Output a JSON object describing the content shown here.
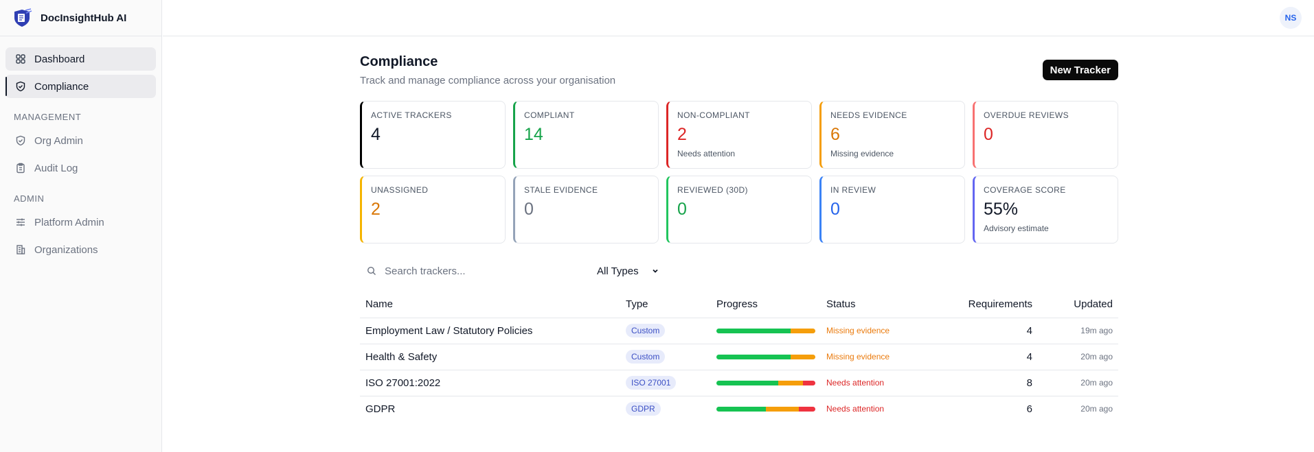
{
  "app": {
    "name": "DocInsightHub AI"
  },
  "user": {
    "initials": "NS"
  },
  "sidebar": {
    "items": [
      {
        "label": "Dashboard",
        "icon": "grid-icon"
      },
      {
        "label": "Compliance",
        "icon": "shield-check-icon"
      }
    ],
    "sections": [
      {
        "title": "MANAGEMENT",
        "items": [
          {
            "label": "Org Admin",
            "icon": "shield-icon"
          },
          {
            "label": "Audit Log",
            "icon": "clipboard-icon"
          }
        ]
      },
      {
        "title": "ADMIN",
        "items": [
          {
            "label": "Platform Admin",
            "icon": "sliders-icon"
          },
          {
            "label": "Organizations",
            "icon": "building-icon"
          }
        ]
      }
    ]
  },
  "page": {
    "title": "Compliance",
    "subtitle": "Track and manage compliance across your organisation",
    "new_button": "New Tracker"
  },
  "stats": [
    {
      "label": "ACTIVE TRACKERS",
      "value": "4",
      "sub": "",
      "accent": "#000000",
      "color": "#111827"
    },
    {
      "label": "COMPLIANT",
      "value": "14",
      "sub": "",
      "accent": "#16a34a",
      "color": "#16a34a"
    },
    {
      "label": "NON-COMPLIANT",
      "value": "2",
      "sub": "Needs attention",
      "accent": "#dc2626",
      "color": "#dc2626"
    },
    {
      "label": "NEEDS EVIDENCE",
      "value": "6",
      "sub": "Missing evidence",
      "accent": "#f59e0b",
      "color": "#d97706"
    },
    {
      "label": "OVERDUE REVIEWS",
      "value": "0",
      "sub": "",
      "accent": "#f87171",
      "color": "#dc2626"
    },
    {
      "label": "UNASSIGNED",
      "value": "2",
      "sub": "",
      "accent": "#f5b400",
      "color": "#d97706"
    },
    {
      "label": "STALE EVIDENCE",
      "value": "0",
      "sub": "",
      "accent": "#94a3b8",
      "color": "#6b7280"
    },
    {
      "label": "REVIEWED (30D)",
      "value": "0",
      "sub": "",
      "accent": "#22c55e",
      "color": "#16a34a"
    },
    {
      "label": "IN REVIEW",
      "value": "0",
      "sub": "",
      "accent": "#3b82f6",
      "color": "#2563eb"
    },
    {
      "label": "COVERAGE SCORE",
      "value": "55%",
      "sub": "Advisory estimate",
      "accent": "#6366f1",
      "color": "#111827"
    }
  ],
  "filters": {
    "search_placeholder": "Search trackers...",
    "type_selected": "All Types"
  },
  "table": {
    "columns": [
      "Name",
      "Type",
      "Progress",
      "Status",
      "Requirements",
      "Updated"
    ],
    "rows": [
      {
        "name": "Employment Law / Statutory Policies",
        "type": "Custom",
        "progress": {
          "compliant": 0.75,
          "needs_evidence": 0.25,
          "non_compliant": 0
        },
        "status": "Missing evidence",
        "status_color": "#ea7a0c",
        "requirements": "4",
        "updated": "19m ago"
      },
      {
        "name": "Health & Safety",
        "type": "Custom",
        "progress": {
          "compliant": 0.75,
          "needs_evidence": 0.25,
          "non_compliant": 0
        },
        "status": "Missing evidence",
        "status_color": "#ea7a0c",
        "requirements": "4",
        "updated": "20m ago"
      },
      {
        "name": "ISO 27001:2022",
        "type": "ISO 27001",
        "progress": {
          "compliant": 0.625,
          "needs_evidence": 0.25,
          "non_compliant": 0.125
        },
        "status": "Needs attention",
        "status_color": "#dc2626",
        "requirements": "8",
        "updated": "20m ago"
      },
      {
        "name": "GDPR",
        "type": "GDPR",
        "progress": {
          "compliant": 0.5,
          "needs_evidence": 0.333,
          "non_compliant": 0.167
        },
        "status": "Needs attention",
        "status_color": "#dc2626",
        "requirements": "6",
        "updated": "20m ago"
      }
    ]
  }
}
